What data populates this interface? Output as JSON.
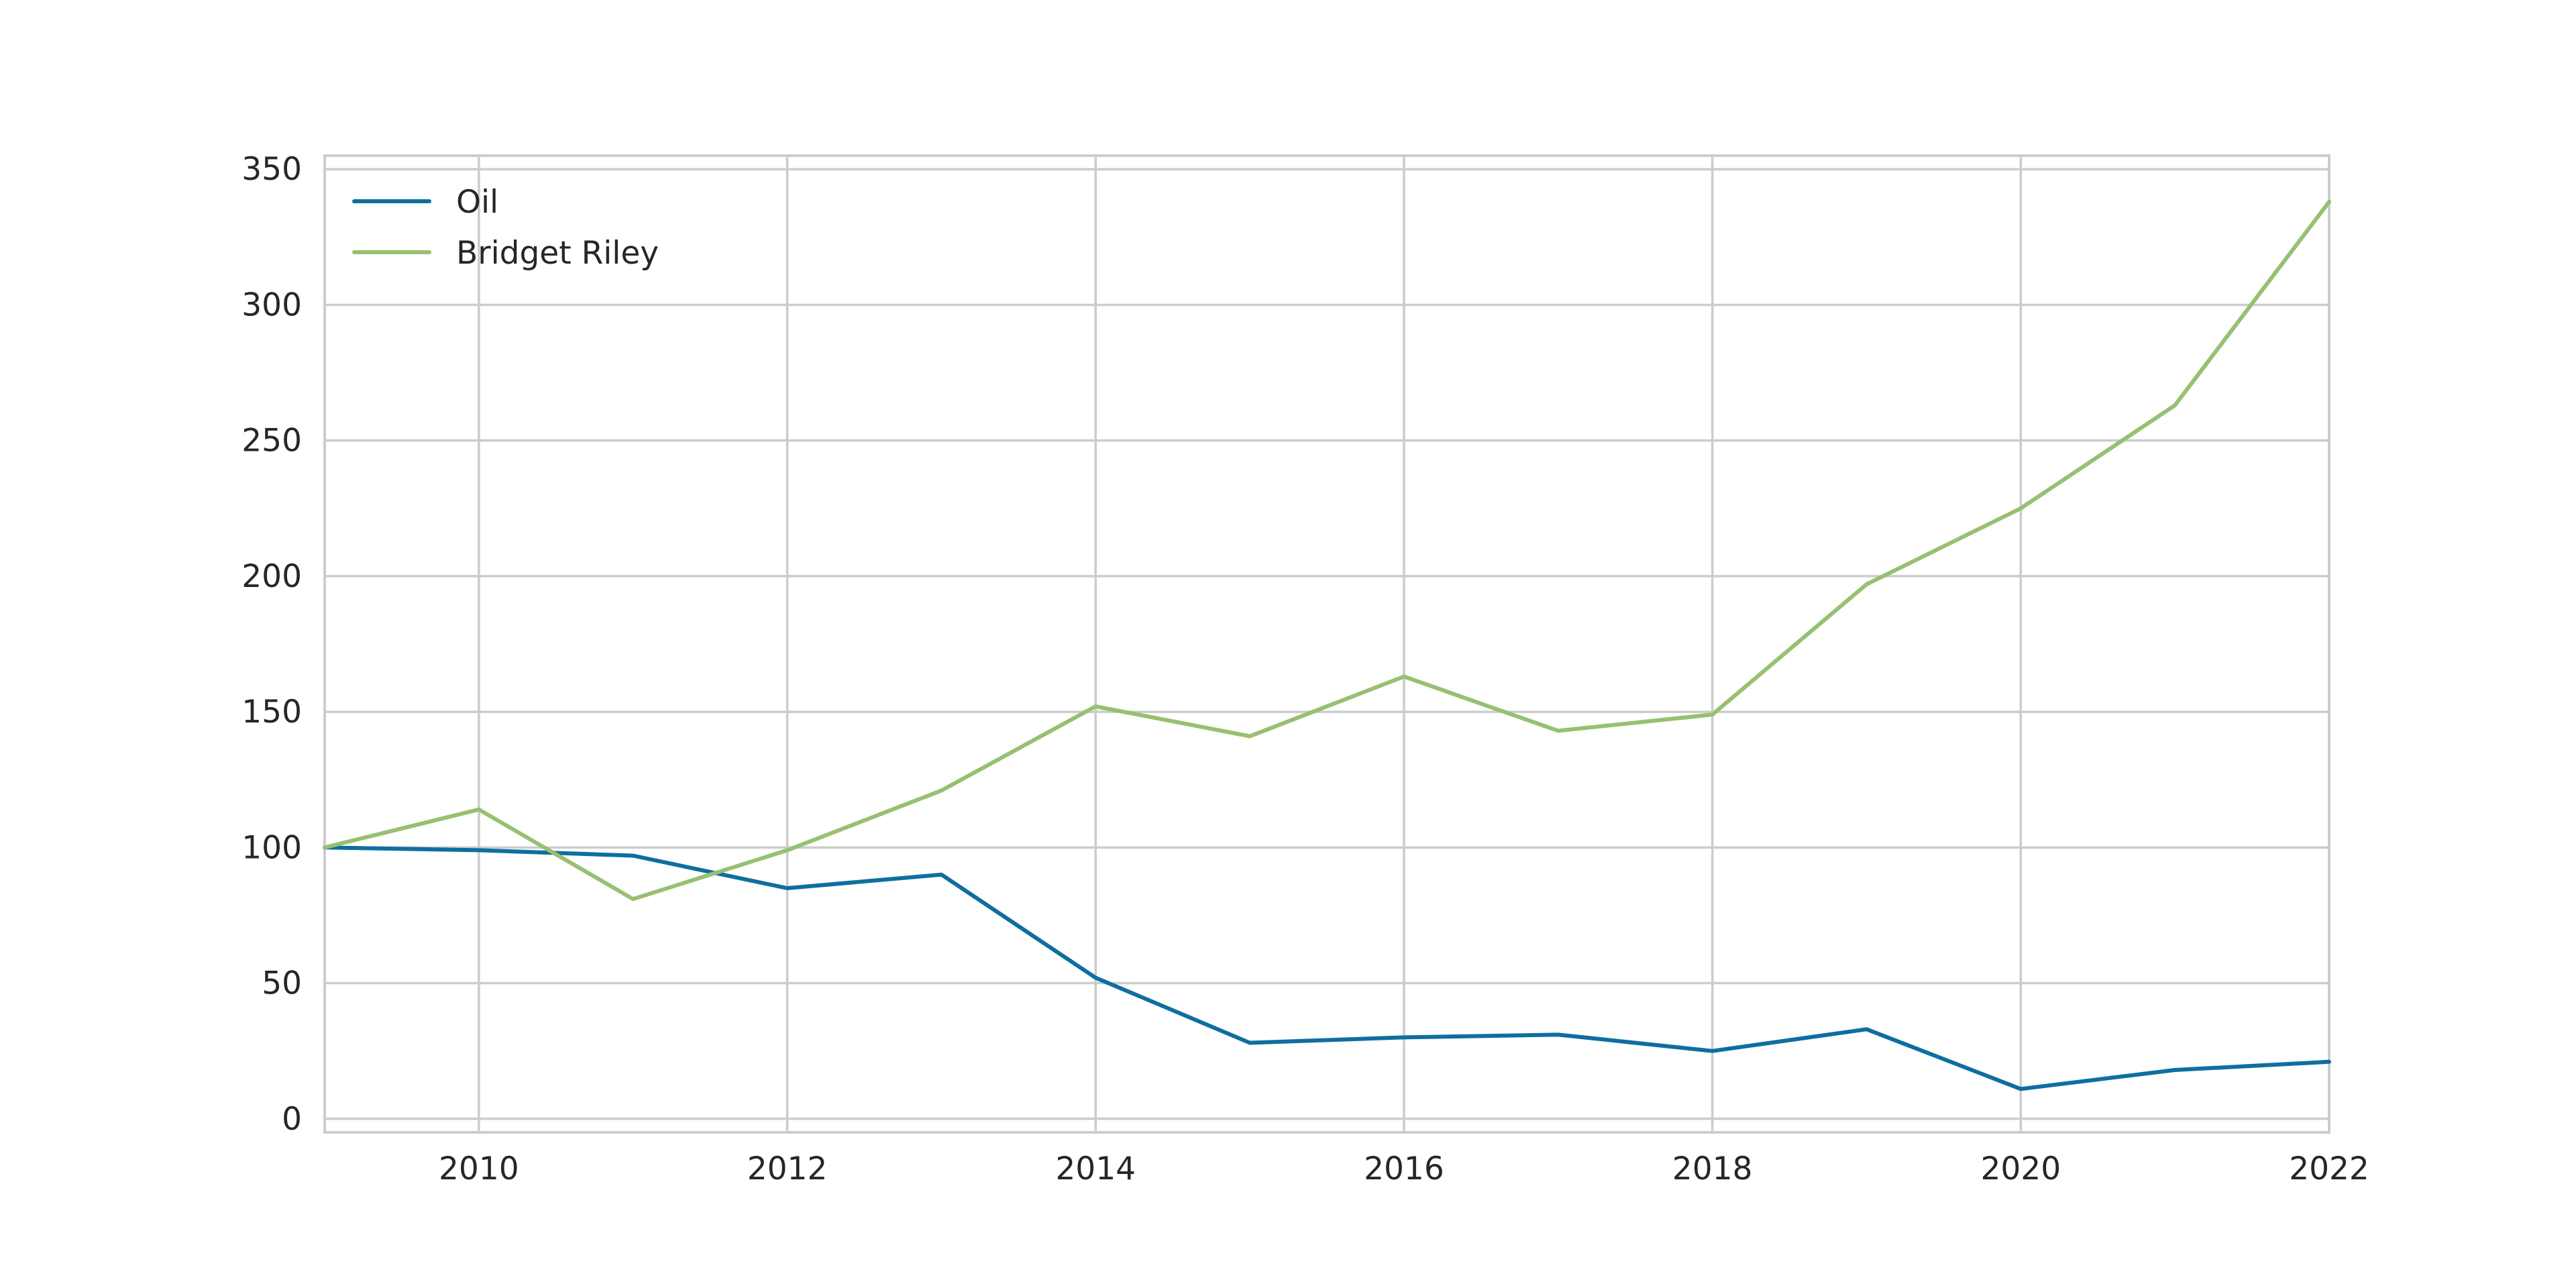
{
  "chart_data": {
    "type": "line",
    "x": [
      2009,
      2010,
      2011,
      2012,
      2013,
      2014,
      2015,
      2016,
      2017,
      2018,
      2019,
      2020,
      2021,
      2022
    ],
    "series": [
      {
        "name": "Oil",
        "color": "#0e6f9f",
        "values": [
          100,
          99,
          97,
          85,
          90,
          52,
          28,
          30,
          31,
          25,
          33,
          11,
          18,
          21
        ]
      },
      {
        "name": "Bridget Riley",
        "color": "#97c071",
        "values": [
          100,
          114,
          81,
          99,
          121,
          152,
          141,
          163,
          143,
          149,
          197,
          225,
          263,
          338
        ]
      }
    ],
    "xlim": [
      2009,
      2022
    ],
    "ylim": [
      -5,
      355
    ],
    "xticks": [
      2010,
      2012,
      2014,
      2016,
      2018,
      2020,
      2022
    ],
    "yticks": [
      0,
      50,
      100,
      150,
      200,
      250,
      300,
      350
    ],
    "xtick_labels": [
      "2010",
      "2012",
      "2014",
      "2016",
      "2018",
      "2020",
      "2022"
    ],
    "ytick_labels": [
      "0",
      "50",
      "100",
      "150",
      "200",
      "250",
      "300",
      "350"
    ],
    "grid": true,
    "legend_position": "top-left",
    "title": "",
    "xlabel": "",
    "ylabel": ""
  },
  "colors": {
    "grid": "#cccccc",
    "frame": "#cccccc",
    "text": "#262626"
  }
}
